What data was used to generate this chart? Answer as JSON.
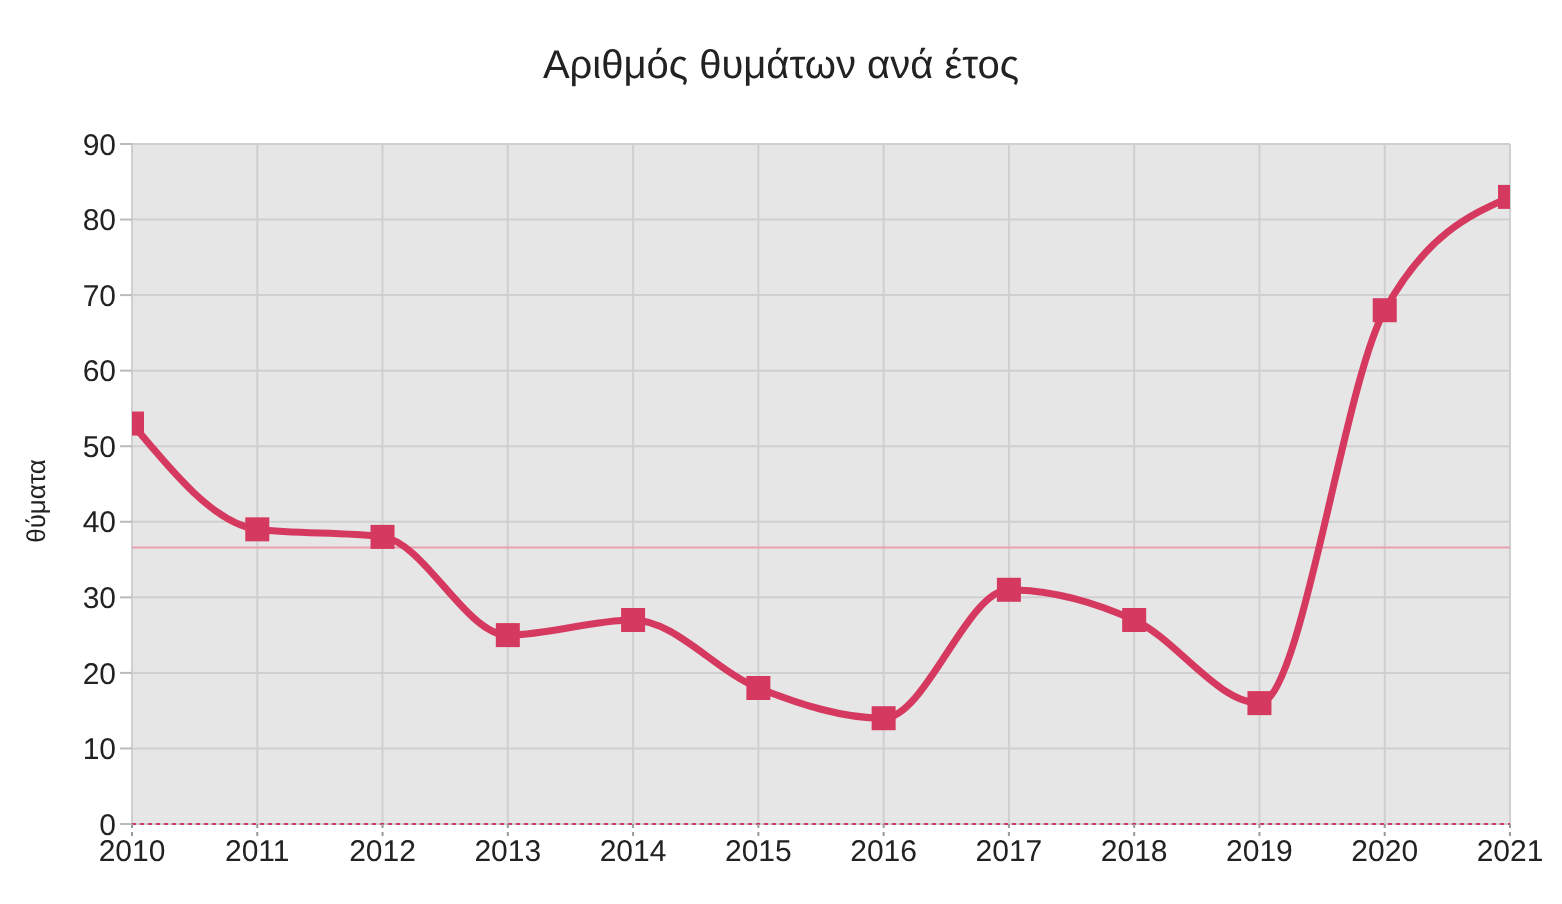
{
  "chart_data": {
    "type": "line",
    "title": "Αριθμός θυμάτων ανά έτος",
    "ylabel": "θύματα",
    "x": [
      2010,
      2011,
      2012,
      2013,
      2014,
      2015,
      2016,
      2017,
      2018,
      2019,
      2020,
      2021
    ],
    "series": [
      {
        "color": "#d6395f",
        "values": [
          53,
          39,
          38,
          25,
          27,
          18,
          14,
          31,
          27,
          16,
          68,
          83
        ]
      }
    ],
    "xlim": [
      2010,
      2021
    ],
    "xticks": [
      2010,
      2011,
      2012,
      2013,
      2014,
      2015,
      2016,
      2017,
      2018,
      2019,
      2020,
      2021
    ],
    "ylim": [
      0,
      90
    ],
    "yticks": [
      0,
      10,
      20,
      30,
      40,
      50,
      60,
      70,
      80,
      90
    ],
    "ref_lines": [
      {
        "axis": "y",
        "value": 36.6,
        "color": "#e8a0b0"
      }
    ],
    "grid": true,
    "legend": false,
    "marker": "square",
    "line_style": "solid"
  }
}
